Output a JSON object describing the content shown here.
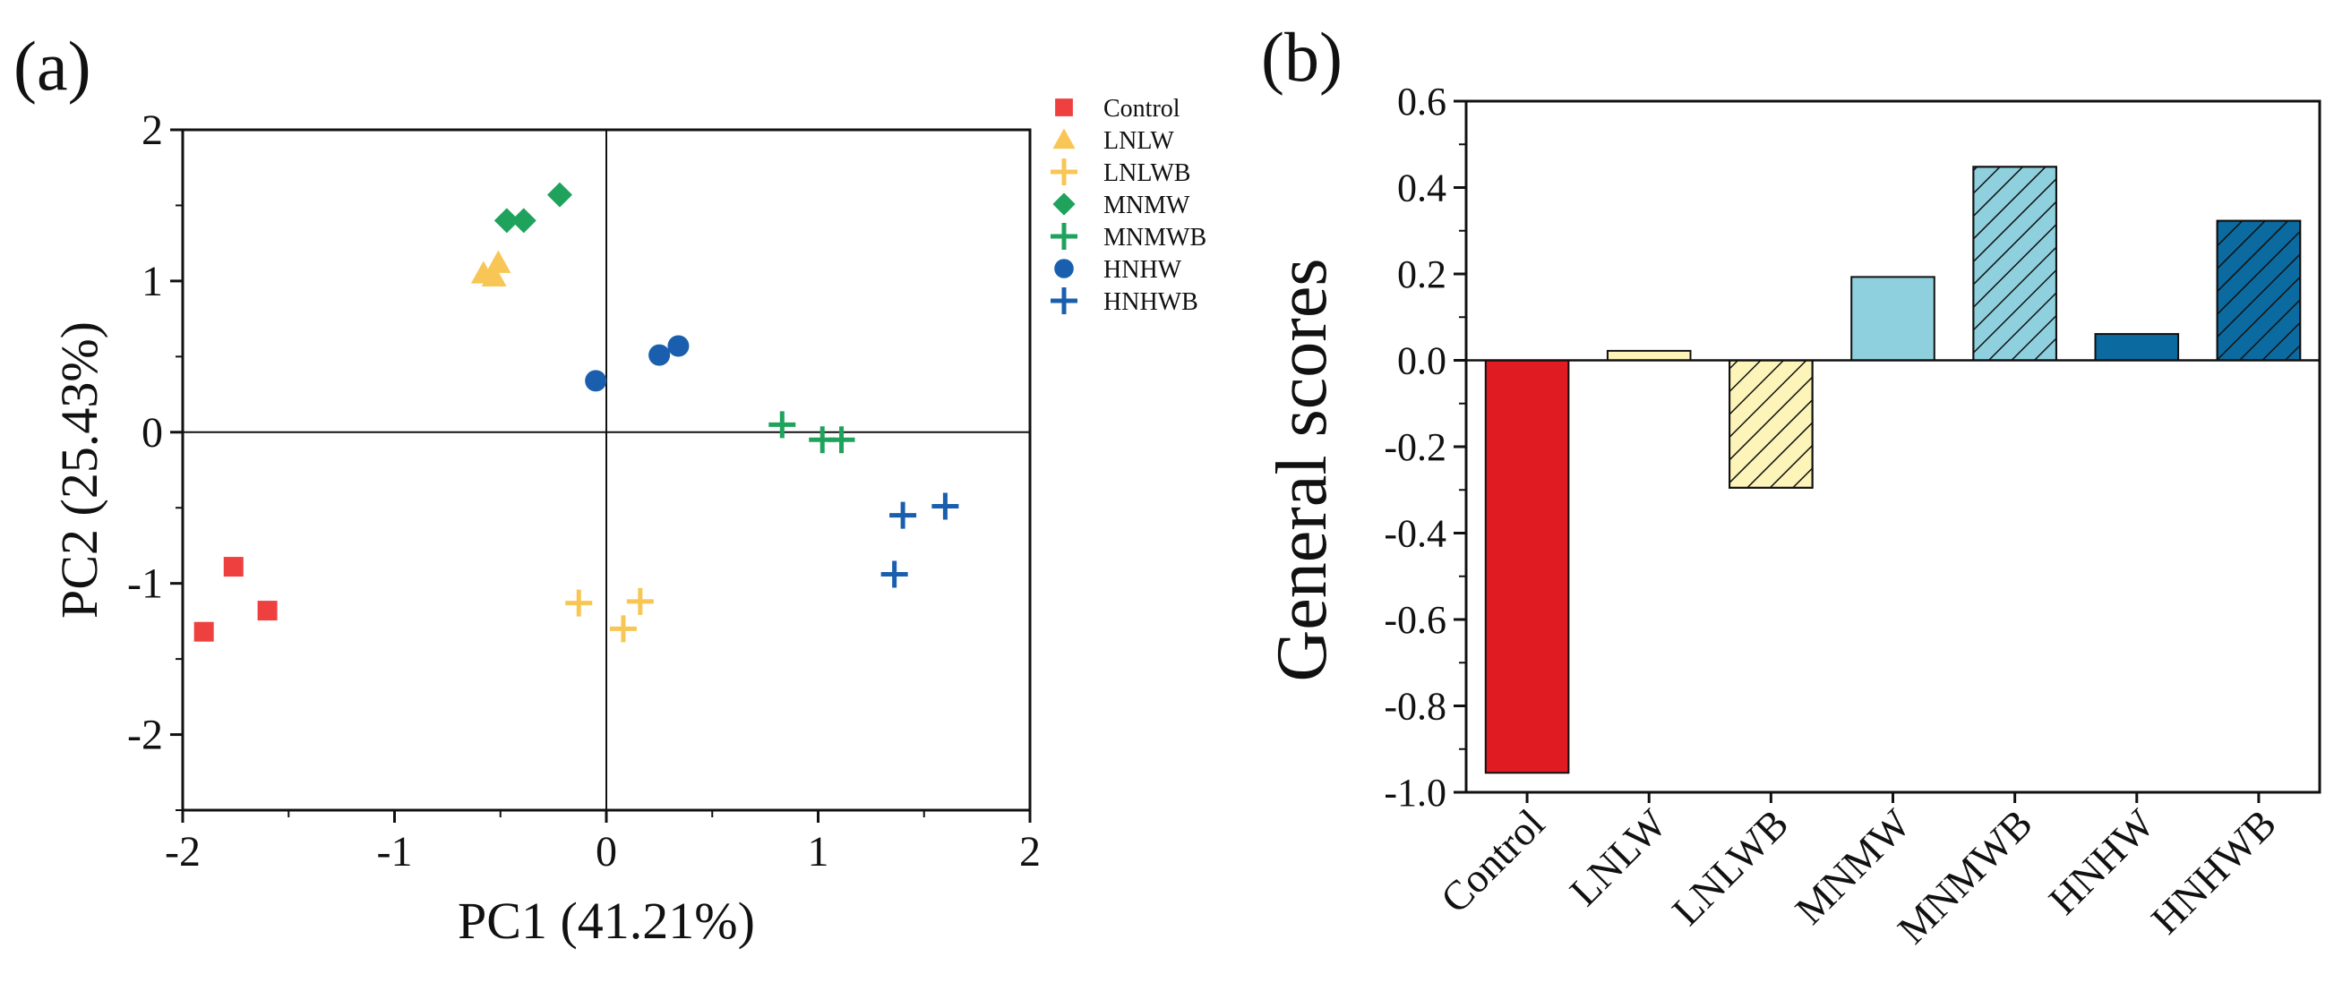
{
  "chart_data": [
    {
      "type": "scatter",
      "panel_label": "(a)",
      "xlabel": "PC1 (41.21%)",
      "ylabel": "PC2 (25.43%)",
      "xlim": [
        -2,
        2
      ],
      "ylim": [
        -2.5,
        2
      ],
      "xticks": [
        "-2",
        "-1",
        "0",
        "1",
        "2"
      ],
      "yticks": [
        "-2",
        "-1",
        "0",
        "1",
        "2"
      ],
      "reference_lines": {
        "x": 0,
        "y": 0
      },
      "legend_position": "top-right, outside plot",
      "series": [
        {
          "name": "Control",
          "marker": "square",
          "color": "#EF4040",
          "points": [
            [
              -1.9,
              -1.32
            ],
            [
              -1.76,
              -0.89
            ],
            [
              -1.6,
              -1.18
            ]
          ]
        },
        {
          "name": "LNLW",
          "marker": "triangle",
          "color": "#F8C654",
          "points": [
            [
              -0.58,
              1.05
            ],
            [
              -0.53,
              1.03
            ],
            [
              -0.51,
              1.12
            ]
          ]
        },
        {
          "name": "LNLWB",
          "marker": "plus",
          "color": "#F8C654",
          "points": [
            [
              -0.13,
              -1.13
            ],
            [
              0.08,
              -1.3
            ],
            [
              0.16,
              -1.12
            ]
          ]
        },
        {
          "name": "MNMW",
          "marker": "diamond",
          "color": "#1FA35C",
          "points": [
            [
              -0.47,
              1.4
            ],
            [
              -0.39,
              1.4
            ],
            [
              -0.22,
              1.57
            ]
          ]
        },
        {
          "name": "MNMWB",
          "marker": "plus",
          "color": "#1FA35C",
          "points": [
            [
              0.83,
              0.05
            ],
            [
              1.02,
              -0.05
            ],
            [
              1.11,
              -0.05
            ]
          ]
        },
        {
          "name": "HNHW",
          "marker": "circle",
          "color": "#1A5FAD",
          "points": [
            [
              -0.05,
              0.34
            ],
            [
              0.25,
              0.51
            ],
            [
              0.34,
              0.57
            ]
          ]
        },
        {
          "name": "HNHWB",
          "marker": "plus",
          "color": "#1A5FAD",
          "points": [
            [
              1.36,
              -0.94
            ],
            [
              1.4,
              -0.55
            ],
            [
              1.6,
              -0.49
            ]
          ]
        }
      ]
    },
    {
      "type": "bar",
      "panel_label": "(b)",
      "ylabel": "General scores",
      "ylim": [
        -1.0,
        0.6
      ],
      "yticks": [
        "-1.0",
        "-0.8",
        "-0.6",
        "-0.4",
        "-0.2",
        "0.0",
        "0.2",
        "0.4",
        "0.6"
      ],
      "categories": [
        "Control",
        "LNLW",
        "LNLWB",
        "MNMW",
        "MNMWB",
        "HNHW",
        "HNHWB"
      ],
      "values": [
        -0.955,
        0.022,
        -0.295,
        0.193,
        0.448,
        0.061,
        0.323
      ],
      "colors": [
        "#E11B22",
        "#FCF4B8",
        "#FCF4B8",
        "#8FD0DF",
        "#8FD0DF",
        "#0B6AA0",
        "#0B6AA0"
      ],
      "hatched": [
        false,
        false,
        true,
        false,
        true,
        false,
        true
      ]
    }
  ]
}
